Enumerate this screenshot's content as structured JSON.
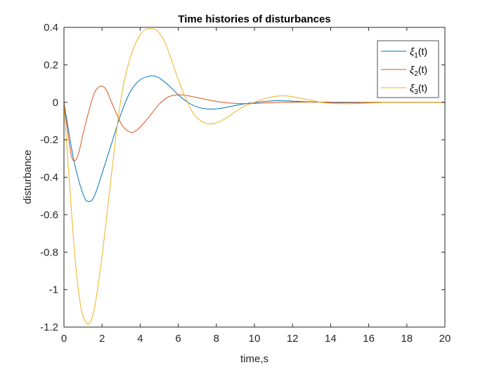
{
  "chart_data": {
    "type": "line",
    "title": "Time histories of disturbances",
    "xlabel": "time,s",
    "ylabel": "disturbance",
    "xlim": [
      0,
      20
    ],
    "ylim": [
      -1.2,
      0.4
    ],
    "xticks": [
      0,
      2,
      4,
      6,
      8,
      10,
      12,
      14,
      16,
      18,
      20
    ],
    "yticks": [
      -1.2,
      -1,
      -0.8,
      -0.6,
      -0.4,
      -0.2,
      0,
      0.2,
      0.4
    ],
    "xtick_labels": [
      "0",
      "2",
      "4",
      "6",
      "8",
      "10",
      "12",
      "14",
      "16",
      "18",
      "20"
    ],
    "ytick_labels": [
      "-1.2",
      "-1",
      "-0.8",
      "-0.6",
      "-0.4",
      "-0.2",
      "0",
      "0.2",
      "0.4"
    ],
    "grid": false,
    "legend_position": "top-right",
    "series": [
      {
        "name": "ξ1(t)",
        "legend_base": "ξ",
        "legend_sub": "1",
        "legend_suffix": "(t)",
        "color": "#0072BD",
        "x": [
          0,
          0.5,
          1.0,
          1.3,
          1.6,
          2.0,
          2.5,
          3.0,
          3.5,
          4.0,
          4.5,
          4.75,
          5.0,
          5.5,
          6.0,
          6.5,
          7.0,
          7.5,
          8.0,
          8.5,
          9.0,
          9.5,
          10.0,
          10.5,
          11.0,
          11.5,
          12.0,
          13.0,
          14.0,
          15.0,
          16.0,
          17.0,
          18.0,
          19.0,
          20.0
        ],
        "y": [
          0,
          -0.3,
          -0.49,
          -0.53,
          -0.5,
          -0.38,
          -0.22,
          -0.06,
          0.06,
          0.12,
          0.14,
          0.14,
          0.13,
          0.09,
          0.04,
          0.0,
          -0.025,
          -0.035,
          -0.035,
          -0.027,
          -0.017,
          -0.008,
          -0.002,
          0.004,
          0.008,
          0.008,
          0.006,
          0.002,
          -0.001,
          -0.002,
          -0.001,
          0.0,
          0.0,
          0.0,
          0.0
        ]
      },
      {
        "name": "ξ2(t)",
        "legend_base": "ξ",
        "legend_sub": "2",
        "legend_suffix": "(t)",
        "color": "#D95319",
        "x": [
          0,
          0.2,
          0.4,
          0.6,
          0.8,
          1.0,
          1.3,
          1.6,
          1.9,
          2.2,
          2.5,
          2.8,
          3.1,
          3.5,
          3.8,
          4.2,
          4.6,
          5.0,
          5.5,
          6.0,
          6.5,
          7.0,
          7.5,
          8.0,
          8.5,
          9.0,
          9.5,
          10.0,
          11.0,
          12.0,
          13.0,
          14.0,
          16.0,
          18.0,
          20.0
        ],
        "y": [
          0,
          -0.16,
          -0.29,
          -0.31,
          -0.26,
          -0.17,
          -0.05,
          0.05,
          0.085,
          0.07,
          0.0,
          -0.07,
          -0.13,
          -0.16,
          -0.15,
          -0.11,
          -0.06,
          -0.01,
          0.03,
          0.04,
          0.035,
          0.025,
          0.014,
          0.005,
          -0.002,
          -0.006,
          -0.007,
          -0.006,
          -0.002,
          0.001,
          0.002,
          0.001,
          0.0,
          0.0,
          0.0
        ]
      },
      {
        "name": "ξ3(t)",
        "legend_base": "ξ",
        "legend_sub": "3",
        "legend_suffix": "(t)",
        "color": "#EDB120",
        "x": [
          0,
          0.3,
          0.6,
          0.9,
          1.2,
          1.4,
          1.6,
          1.9,
          2.2,
          2.5,
          2.8,
          3.1,
          3.4,
          3.7,
          4.0,
          4.3,
          4.75,
          5.0,
          5.3,
          5.6,
          6.0,
          6.4,
          6.8,
          7.2,
          7.6,
          8.0,
          8.5,
          9.0,
          9.5,
          10.0,
          10.5,
          11.0,
          11.5,
          12.0,
          12.5,
          13.0,
          13.5,
          14.0,
          15.0,
          16.0,
          17.0,
          18.0,
          19.0,
          20.0
        ],
        "y": [
          0,
          -0.45,
          -0.85,
          -1.1,
          -1.18,
          -1.17,
          -1.1,
          -0.9,
          -0.65,
          -0.38,
          -0.12,
          0.08,
          0.21,
          0.3,
          0.36,
          0.39,
          0.39,
          0.37,
          0.32,
          0.24,
          0.12,
          0.02,
          -0.06,
          -0.1,
          -0.115,
          -0.11,
          -0.085,
          -0.05,
          -0.02,
          0.0,
          0.018,
          0.03,
          0.035,
          0.03,
          0.02,
          0.01,
          0.0,
          -0.005,
          -0.008,
          -0.004,
          0.0,
          0.001,
          0.0,
          0.0
        ]
      }
    ]
  }
}
